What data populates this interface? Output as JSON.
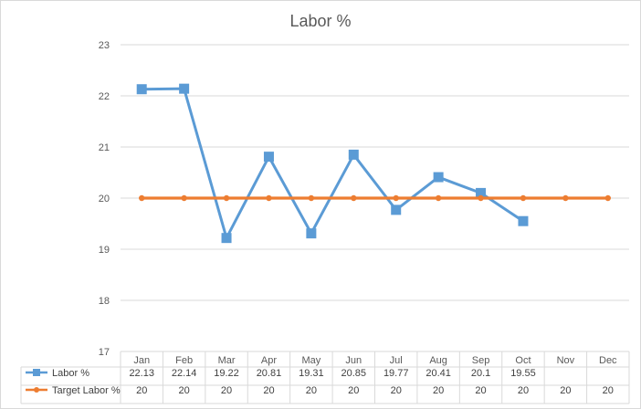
{
  "chart_data": {
    "type": "line",
    "title": "Labor %",
    "categories": [
      "Jan",
      "Feb",
      "Mar",
      "Apr",
      "May",
      "Jun",
      "Jul",
      "Aug",
      "Sep",
      "Oct",
      "Nov",
      "Dec"
    ],
    "series": [
      {
        "name": "Labor %",
        "values": [
          22.13,
          22.14,
          19.22,
          20.81,
          19.31,
          20.85,
          19.77,
          20.41,
          20.1,
          19.55,
          null,
          null
        ],
        "color": "#5b9bd5",
        "marker": "square"
      },
      {
        "name": "Target Labor %",
        "values": [
          20,
          20,
          20,
          20,
          20,
          20,
          20,
          20,
          20,
          20,
          20,
          20
        ],
        "color": "#ed7d31",
        "marker": "circle"
      }
    ],
    "ylim": [
      17,
      23
    ],
    "yticks": [
      17,
      18,
      19,
      20,
      21,
      22,
      23
    ],
    "grid": true,
    "legend": "data-table"
  }
}
